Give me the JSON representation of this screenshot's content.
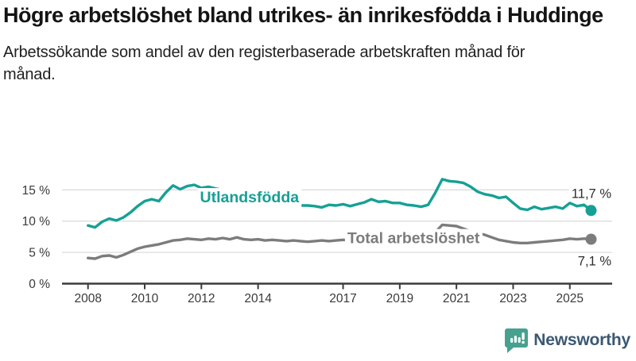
{
  "header": {
    "title": "Högre arbetslöshet bland utrikes- än inrikesfödda i Huddinge",
    "subtitle": "Arbetssökande som andel av den registerbaserade arbetskraften månad för månad."
  },
  "footer": {
    "brand": "Newsworthy",
    "brand_color": "#3b5874",
    "logo_color": "#46a18f",
    "logo_icon": "bar-chart-speech-bubble-icon"
  },
  "chart_data": {
    "type": "line",
    "title": "Högre arbetslöshet bland utrikes- än inrikesfödda i Huddinge",
    "subtitle": "Arbetssökande som andel av den registerbaserade arbetskraften månad för månad.",
    "x_unit": "year, monthly observations",
    "xlim": [
      2008,
      2026
    ],
    "ylim": [
      0,
      17
    ],
    "grid": "horizontal",
    "legend_position": "inline-labels",
    "colors": {
      "utlandsfodda": "#16a095",
      "total": "#7c7c7c",
      "grid": "#dcdcdc",
      "axis": "#3b3b3b",
      "tick_text": "#3a3a3a",
      "value_text": "#2e2e2e"
    },
    "y_ticks": [
      {
        "value": 0,
        "label": "0 %"
      },
      {
        "value": 5,
        "label": "5 %"
      },
      {
        "value": 10,
        "label": "10 %"
      },
      {
        "value": 15,
        "label": "15 %"
      }
    ],
    "x_ticks": [
      {
        "value": 2008,
        "label": "2008"
      },
      {
        "value": 2010,
        "label": "2010"
      },
      {
        "value": 2012,
        "label": "2012"
      },
      {
        "value": 2014,
        "label": "2014"
      },
      {
        "value": 2017,
        "label": "2017"
      },
      {
        "value": 2019,
        "label": "2019"
      },
      {
        "value": 2021,
        "label": "2021"
      },
      {
        "value": 2023,
        "label": "2023"
      },
      {
        "value": 2025,
        "label": "2025"
      }
    ],
    "series": [
      {
        "name": "Utlandsfödda",
        "color": "#16a095",
        "end_label": "11,7 %",
        "end_label_pos": "above",
        "label_anchor": {
          "x": 2011.95,
          "y": 13.0
        },
        "points": [
          [
            2008.0,
            9.3
          ],
          [
            2008.25,
            9.0
          ],
          [
            2008.5,
            9.9
          ],
          [
            2008.75,
            10.4
          ],
          [
            2009.0,
            10.1
          ],
          [
            2009.25,
            10.6
          ],
          [
            2009.5,
            11.4
          ],
          [
            2009.75,
            12.4
          ],
          [
            2010.0,
            13.2
          ],
          [
            2010.25,
            13.5
          ],
          [
            2010.5,
            13.2
          ],
          [
            2010.75,
            14.6
          ],
          [
            2011.0,
            15.7
          ],
          [
            2011.25,
            15.1
          ],
          [
            2011.5,
            15.6
          ],
          [
            2011.75,
            15.8
          ],
          [
            2012.0,
            15.3
          ],
          [
            2012.25,
            15.5
          ],
          [
            2012.5,
            15.2
          ],
          [
            2012.75,
            15.0
          ],
          [
            2013.0,
            14.7
          ],
          [
            2013.25,
            14.4
          ],
          [
            2013.5,
            14.1
          ],
          [
            2013.75,
            13.8
          ],
          [
            2014.0,
            13.5
          ],
          [
            2014.25,
            13.2
          ],
          [
            2014.5,
            13.0
          ],
          [
            2014.75,
            12.8
          ],
          [
            2015.0,
            12.7
          ],
          [
            2015.25,
            12.6
          ],
          [
            2015.5,
            12.5
          ],
          [
            2015.75,
            12.5
          ],
          [
            2016.0,
            12.4
          ],
          [
            2016.25,
            12.2
          ],
          [
            2016.5,
            12.6
          ],
          [
            2016.75,
            12.5
          ],
          [
            2017.0,
            12.7
          ],
          [
            2017.25,
            12.4
          ],
          [
            2017.5,
            12.7
          ],
          [
            2017.75,
            13.0
          ],
          [
            2018.0,
            13.5
          ],
          [
            2018.25,
            13.1
          ],
          [
            2018.5,
            13.2
          ],
          [
            2018.75,
            12.9
          ],
          [
            2019.0,
            12.9
          ],
          [
            2019.25,
            12.6
          ],
          [
            2019.5,
            12.5
          ],
          [
            2019.75,
            12.3
          ],
          [
            2020.0,
            12.6
          ],
          [
            2020.25,
            14.5
          ],
          [
            2020.5,
            16.7
          ],
          [
            2020.75,
            16.4
          ],
          [
            2021.0,
            16.3
          ],
          [
            2021.25,
            16.1
          ],
          [
            2021.5,
            15.5
          ],
          [
            2021.75,
            14.7
          ],
          [
            2022.0,
            14.3
          ],
          [
            2022.25,
            14.1
          ],
          [
            2022.5,
            13.7
          ],
          [
            2022.75,
            13.9
          ],
          [
            2023.0,
            12.9
          ],
          [
            2023.25,
            12.0
          ],
          [
            2023.5,
            11.8
          ],
          [
            2023.75,
            12.3
          ],
          [
            2024.0,
            11.9
          ],
          [
            2024.25,
            12.1
          ],
          [
            2024.5,
            12.3
          ],
          [
            2024.75,
            12.0
          ],
          [
            2025.0,
            12.9
          ],
          [
            2025.25,
            12.4
          ],
          [
            2025.5,
            12.6
          ],
          [
            2025.75,
            11.7
          ]
        ]
      },
      {
        "name": "Total arbetslöshet",
        "color": "#7c7c7c",
        "end_label": "7,1 %",
        "end_label_pos": "below",
        "label_anchor": {
          "x": 2017.15,
          "y": 6.45
        },
        "points": [
          [
            2008.0,
            4.1
          ],
          [
            2008.25,
            4.0
          ],
          [
            2008.5,
            4.4
          ],
          [
            2008.75,
            4.5
          ],
          [
            2009.0,
            4.2
          ],
          [
            2009.25,
            4.6
          ],
          [
            2009.5,
            5.1
          ],
          [
            2009.75,
            5.6
          ],
          [
            2010.0,
            5.9
          ],
          [
            2010.25,
            6.1
          ],
          [
            2010.5,
            6.3
          ],
          [
            2010.75,
            6.6
          ],
          [
            2011.0,
            6.9
          ],
          [
            2011.25,
            7.0
          ],
          [
            2011.5,
            7.2
          ],
          [
            2011.75,
            7.1
          ],
          [
            2012.0,
            7.0
          ],
          [
            2012.25,
            7.2
          ],
          [
            2012.5,
            7.1
          ],
          [
            2012.75,
            7.3
          ],
          [
            2013.0,
            7.1
          ],
          [
            2013.25,
            7.4
          ],
          [
            2013.5,
            7.1
          ],
          [
            2013.75,
            7.0
          ],
          [
            2014.0,
            7.1
          ],
          [
            2014.25,
            6.9
          ],
          [
            2014.5,
            7.0
          ],
          [
            2014.75,
            6.9
          ],
          [
            2015.0,
            6.8
          ],
          [
            2015.25,
            6.9
          ],
          [
            2015.5,
            6.8
          ],
          [
            2015.75,
            6.7
          ],
          [
            2016.0,
            6.8
          ],
          [
            2016.25,
            6.9
          ],
          [
            2016.5,
            6.8
          ],
          [
            2016.75,
            6.9
          ],
          [
            2017.0,
            7.0
          ],
          [
            2017.25,
            6.9
          ],
          [
            2017.5,
            6.8
          ],
          [
            2017.75,
            6.9
          ],
          [
            2018.0,
            6.8
          ],
          [
            2018.25,
            6.9
          ],
          [
            2018.5,
            6.8
          ],
          [
            2018.75,
            6.7
          ],
          [
            2019.0,
            6.8
          ],
          [
            2019.25,
            6.9
          ],
          [
            2019.5,
            6.8
          ],
          [
            2019.75,
            6.9
          ],
          [
            2020.0,
            7.0
          ],
          [
            2020.25,
            8.2
          ],
          [
            2020.5,
            9.4
          ],
          [
            2020.75,
            9.3
          ],
          [
            2021.0,
            9.2
          ],
          [
            2021.25,
            8.8
          ],
          [
            2021.5,
            8.4
          ],
          [
            2021.75,
            8.1
          ],
          [
            2022.0,
            7.8
          ],
          [
            2022.25,
            7.4
          ],
          [
            2022.5,
            7.0
          ],
          [
            2022.75,
            6.8
          ],
          [
            2023.0,
            6.6
          ],
          [
            2023.25,
            6.5
          ],
          [
            2023.5,
            6.5
          ],
          [
            2023.75,
            6.6
          ],
          [
            2024.0,
            6.7
          ],
          [
            2024.25,
            6.8
          ],
          [
            2024.5,
            6.9
          ],
          [
            2024.75,
            7.0
          ],
          [
            2025.0,
            7.2
          ],
          [
            2025.25,
            7.1
          ],
          [
            2025.5,
            7.2
          ],
          [
            2025.75,
            7.1
          ]
        ]
      }
    ]
  }
}
